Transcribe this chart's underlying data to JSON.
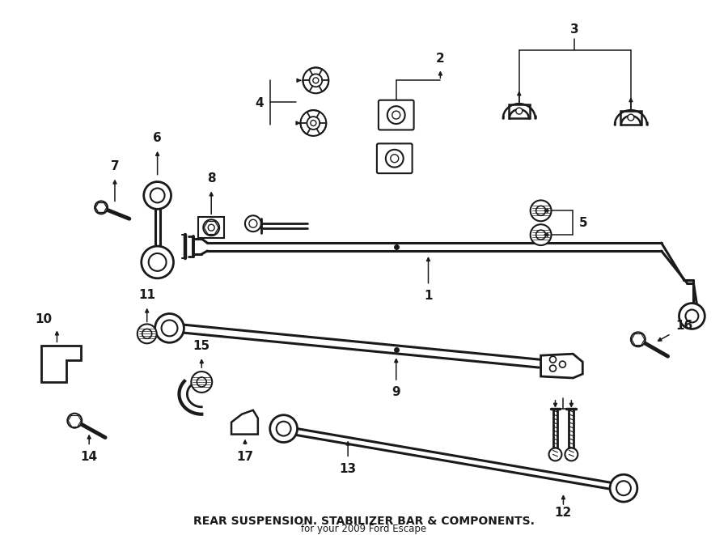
{
  "bg_color": "#ffffff",
  "lc": "#1a1a1a",
  "figsize": [
    9.0,
    6.61
  ],
  "dpi": 100,
  "title": "REAR SUSPENSION. STABILIZER BAR & COMPONENTS.",
  "subtitle": "for your 2009 Ford Escape"
}
